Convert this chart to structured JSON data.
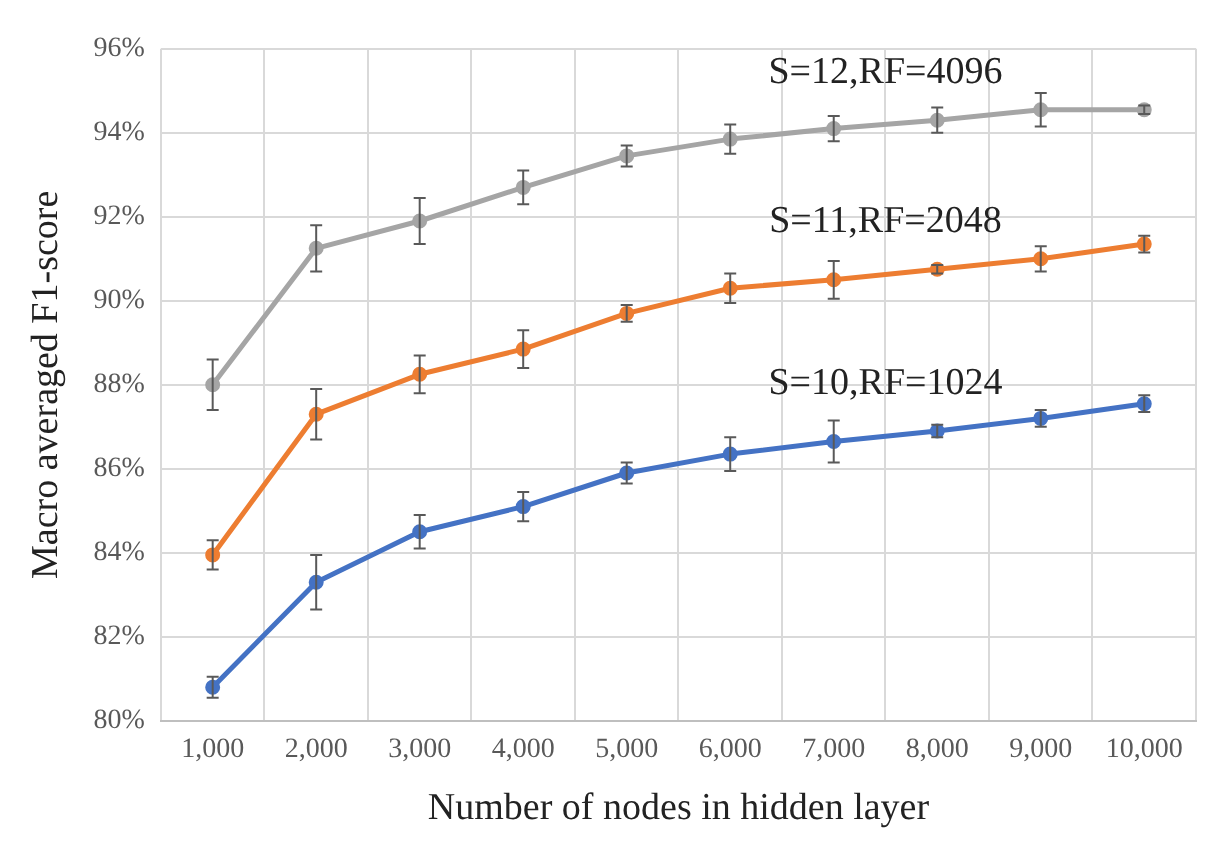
{
  "chart_data": {
    "type": "line",
    "xlabel": "Number of nodes in hidden layer",
    "ylabel": "Macro averaged F1-score",
    "categories": [
      "1,000",
      "2,000",
      "3,000",
      "4,000",
      "5,000",
      "6,000",
      "7,000",
      "8,000",
      "9,000",
      "10,000"
    ],
    "series": [
      {
        "name": "S=10,RF=1024",
        "color": "#4472c4",
        "values": [
          80.8,
          83.3,
          84.5,
          85.1,
          85.9,
          86.35,
          86.65,
          86.9,
          87.2,
          87.55
        ],
        "errors": [
          0.25,
          0.65,
          0.4,
          0.35,
          0.25,
          0.4,
          0.5,
          0.15,
          0.2,
          0.2
        ]
      },
      {
        "name": "S=11,RF=2048",
        "color": "#ed7d31",
        "values": [
          83.95,
          87.3,
          88.25,
          88.85,
          89.7,
          90.3,
          90.5,
          90.75,
          91.0,
          91.35
        ],
        "errors": [
          0.35,
          0.6,
          0.45,
          0.45,
          0.2,
          0.35,
          0.45,
          0.1,
          0.3,
          0.2
        ]
      },
      {
        "name": "S=12,RF=4096",
        "color": "#a5a5a5",
        "values": [
          88.0,
          91.25,
          91.9,
          92.7,
          93.45,
          93.85,
          94.1,
          94.3,
          94.55,
          94.55
        ],
        "errors": [
          0.6,
          0.55,
          0.55,
          0.4,
          0.25,
          0.35,
          0.3,
          0.3,
          0.4,
          0.1
        ]
      }
    ],
    "ylim": [
      80,
      96
    ],
    "yticks": [
      {
        "value": 80,
        "label": "80%"
      },
      {
        "value": 82,
        "label": "82%"
      },
      {
        "value": 84,
        "label": "84%"
      },
      {
        "value": 86,
        "label": "86%"
      },
      {
        "value": 88,
        "label": "88%"
      },
      {
        "value": 90,
        "label": "90%"
      },
      {
        "value": 92,
        "label": "92%"
      },
      {
        "value": 94,
        "label": "94%"
      },
      {
        "value": 96,
        "label": "96%"
      }
    ],
    "grid": true,
    "legend": false,
    "marker": "circle",
    "line_style": "solid"
  }
}
